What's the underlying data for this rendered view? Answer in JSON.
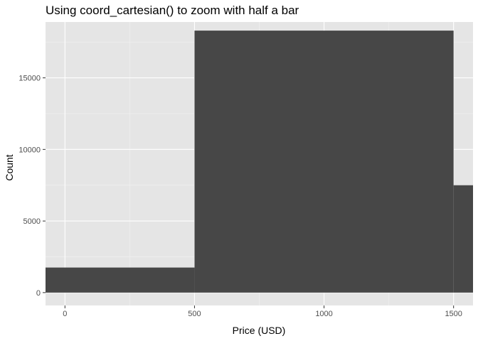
{
  "chart_data": {
    "type": "bar",
    "title": "Using coord_cartesian() to zoom with half a bar",
    "xlabel": "Price (USD)",
    "ylabel": "Count",
    "xlim": [
      -75,
      1575
    ],
    "ylim": [
      -900,
      18900
    ],
    "x_ticks": [
      0,
      500,
      1000,
      1500
    ],
    "x_tick_labels": [
      "0",
      "500",
      "1000",
      "1500"
    ],
    "y_ticks": [
      0,
      5000,
      10000,
      15000
    ],
    "y_tick_labels": [
      "0",
      "5000",
      "10000",
      "15000"
    ],
    "bins": [
      {
        "start": -500,
        "end": 500,
        "count": 1750
      },
      {
        "start": 500,
        "end": 1500,
        "count": 18300
      },
      {
        "start": 1500,
        "end": 2500,
        "count": 7500
      }
    ],
    "grid": true,
    "colors": {
      "panel_background": "#e5e5e5",
      "grid_major": "#ffffff",
      "grid_minor": "#f2f2f2",
      "bar_fill": "#474747",
      "tick_mark": "#333333"
    }
  }
}
